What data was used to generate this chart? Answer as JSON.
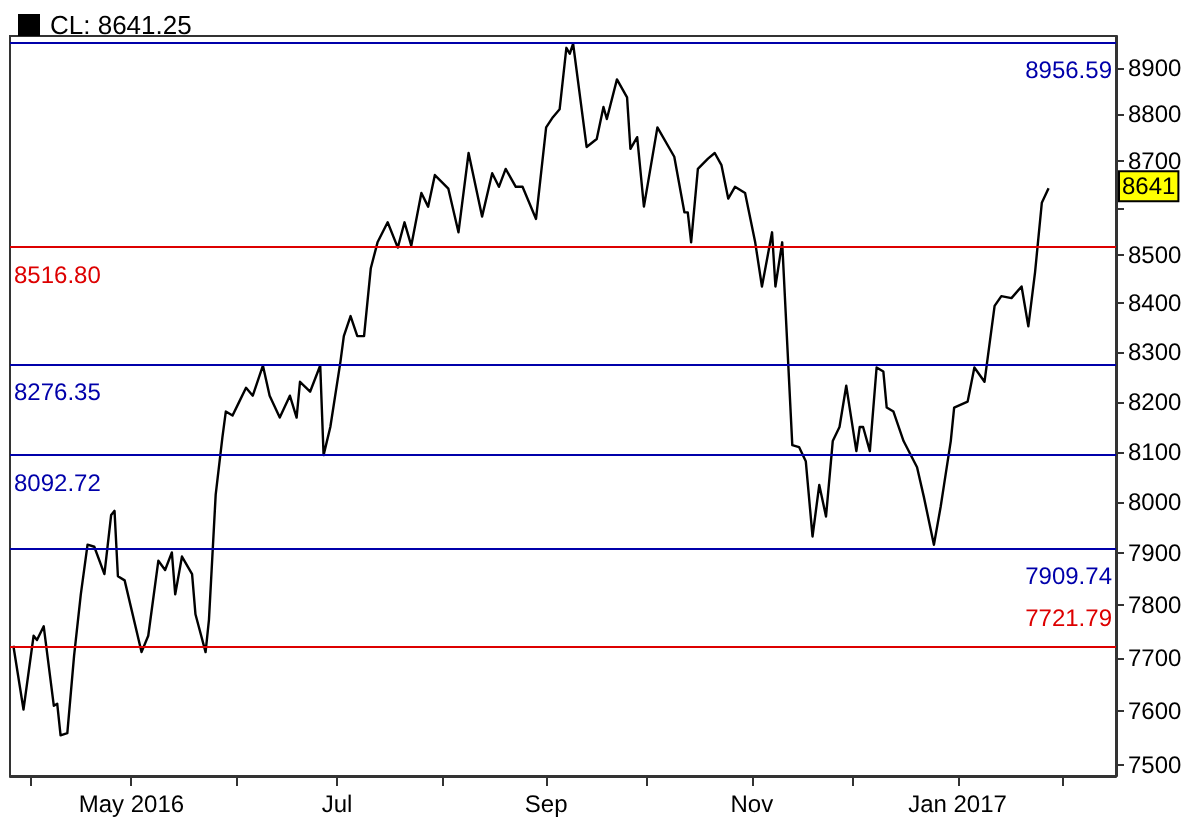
{
  "chart_data": {
    "type": "line",
    "log": true,
    "legend": "top left",
    "grid": false,
    "marker": "none",
    "line_style": "solid",
    "xlim": [
      "2016-03-26",
      "2017-02-17"
    ],
    "xticks": [
      {
        "value": "2016-04-01",
        "label": null
      },
      {
        "value": "2016-05-01",
        "label": "May 2016"
      },
      {
        "value": "2016-06-01",
        "label": null
      },
      {
        "value": "2016-07-01",
        "label": "Jul"
      },
      {
        "value": "2016-08-01",
        "label": null
      },
      {
        "value": "2016-09-01",
        "label": "Sep"
      },
      {
        "value": "2016-10-01",
        "label": null
      },
      {
        "value": "2016-11-01",
        "label": "Nov"
      },
      {
        "value": "2016-12-01",
        "label": null
      },
      {
        "value": "2017-01-01",
        "label": "Jan 2017"
      },
      {
        "value": "2017-02-01",
        "label": null
      }
    ],
    "ylim": [
      7480,
      8970
    ],
    "yticks": [
      7500,
      7600,
      7700,
      7800,
      7900,
      8000,
      8100,
      8200,
      8300,
      8400,
      8500,
      {
        "value": 8600,
        "label": null
      },
      8700,
      8800,
      8900
    ],
    "x": [
      "2016-03-27",
      "2016-03-30",
      "2016-04-02",
      "2016-04-03",
      "2016-04-05",
      "2016-04-08",
      "2016-04-09",
      "2016-04-10",
      "2016-04-12",
      "2016-04-14",
      "2016-04-16",
      "2016-04-18",
      "2016-04-20",
      "2016-04-23",
      "2016-04-25",
      "2016-04-26",
      "2016-04-27",
      "2016-04-29",
      "2016-05-04",
      "2016-05-06",
      "2016-05-09",
      "2016-05-11",
      "2016-05-13",
      "2016-05-14",
      "2016-05-16",
      "2016-05-19",
      "2016-05-20",
      "2016-05-23",
      "2016-05-24",
      "2016-05-26",
      "2016-05-28",
      "2016-05-29",
      "2016-05-31",
      "2016-06-02",
      "2016-06-04",
      "2016-06-06",
      "2016-06-09",
      "2016-06-11",
      "2016-06-14",
      "2016-06-17",
      "2016-06-19",
      "2016-06-20",
      "2016-06-23",
      "2016-06-26",
      "2016-06-27",
      "2016-06-29",
      "2016-07-02",
      "2016-07-03",
      "2016-07-05",
      "2016-07-07",
      "2016-07-09",
      "2016-07-11",
      "2016-07-13",
      "2016-07-16",
      "2016-07-19",
      "2016-07-21",
      "2016-07-23",
      "2016-07-26",
      "2016-07-28",
      "2016-07-30",
      "2016-08-03",
      "2016-08-06",
      "2016-08-09",
      "2016-08-13",
      "2016-08-16",
      "2016-08-18",
      "2016-08-20",
      "2016-08-23",
      "2016-08-25",
      "2016-08-29",
      "2016-09-01",
      "2016-09-03",
      "2016-09-05",
      "2016-09-07",
      "2016-09-08",
      "2016-09-09",
      "2016-09-13",
      "2016-09-16",
      "2016-09-18",
      "2016-09-19",
      "2016-09-22",
      "2016-09-25",
      "2016-09-26",
      "2016-09-28",
      "2016-09-30",
      "2016-10-04",
      "2016-10-09",
      "2016-10-12",
      "2016-10-13",
      "2016-10-14",
      "2016-10-16",
      "2016-10-19",
      "2016-10-21",
      "2016-10-23",
      "2016-10-25",
      "2016-10-27",
      "2016-10-30",
      "2016-11-02",
      "2016-11-04",
      "2016-11-07",
      "2016-11-08",
      "2016-11-10",
      "2016-11-13",
      "2016-11-15",
      "2016-11-17",
      "2016-11-19",
      "2016-11-21",
      "2016-11-23",
      "2016-11-25",
      "2016-11-27",
      "2016-11-29",
      "2016-11-30",
      "2016-12-02",
      "2016-12-03",
      "2016-12-04",
      "2016-12-06",
      "2016-12-08",
      "2016-12-10",
      "2016-12-11",
      "2016-12-13",
      "2016-12-16",
      "2016-12-20",
      "2016-12-22",
      "2016-12-25",
      "2016-12-27",
      "2016-12-28",
      "2016-12-30",
      "2016-12-31",
      "2017-01-04",
      "2017-01-06",
      "2017-01-09",
      "2017-01-12",
      "2017-01-14",
      "2017-01-17",
      "2017-01-20",
      "2017-01-22",
      "2017-01-24",
      "2017-01-26",
      "2017-01-28"
    ],
    "series": [
      {
        "name": "CL: 8641.25",
        "color": "#000000",
        "values": [
          7723,
          7603,
          7742,
          7734,
          7760,
          7610,
          7614,
          7555,
          7559,
          7704,
          7821,
          7917,
          7913,
          7860,
          7975,
          7983,
          7856,
          7848,
          7711,
          7742,
          7886,
          7868,
          7902,
          7821,
          7894,
          7860,
          7783,
          7711,
          7772,
          8015,
          8129,
          8180,
          8172,
          8200,
          8228,
          8212,
          8273,
          8212,
          8168,
          8212,
          8168,
          8240,
          8220,
          8273,
          8093,
          8149,
          8281,
          8333,
          8374,
          8333,
          8333,
          8473,
          8527,
          8569,
          8516,
          8569,
          8520,
          8631,
          8602,
          8669,
          8640,
          8548,
          8716,
          8581,
          8673,
          8644,
          8682,
          8644,
          8644,
          8576,
          8771,
          8793,
          8810,
          8944,
          8931,
          8953,
          8729,
          8746,
          8815,
          8789,
          8875,
          8836,
          8725,
          8750,
          8602,
          8771,
          8708,
          8590,
          8590,
          8527,
          8682,
          8704,
          8716,
          8690,
          8619,
          8644,
          8631,
          8527,
          8435,
          8548,
          8435,
          8527,
          8113,
          8109,
          8081,
          7933,
          8034,
          7972,
          8121,
          8149,
          8232,
          8188,
          8101,
          8149,
          8149,
          8101,
          8269,
          8261,
          8188,
          8180,
          8121,
          8069,
          8011,
          7917,
          7991,
          8034,
          8121,
          8188,
          8200,
          8269,
          8240,
          8395,
          8415,
          8411,
          8435,
          8353,
          8465,
          8610,
          8641
        ]
      }
    ],
    "ref_lines": [
      {
        "axis": "y",
        "value": 8956.59,
        "label": "8956.59",
        "color": "#0000aa"
      },
      {
        "axis": "y",
        "value": 8516.8,
        "label": "8516.80",
        "color": "#dd0000"
      },
      {
        "axis": "y",
        "value": 8276.35,
        "label": "8276.35",
        "color": "#0000aa"
      },
      {
        "axis": "y",
        "value": 8092.72,
        "label": "8092.72",
        "color": "#0000aa"
      },
      {
        "axis": "y",
        "value": 7909.74,
        "label": "7909.74",
        "color": "#0000aa"
      },
      {
        "axis": "y",
        "value": 7721.79,
        "label": "7721.79",
        "color": "#dd0000"
      }
    ],
    "annotations": [
      {
        "text": "8641",
        "y": 8641
      }
    ]
  }
}
